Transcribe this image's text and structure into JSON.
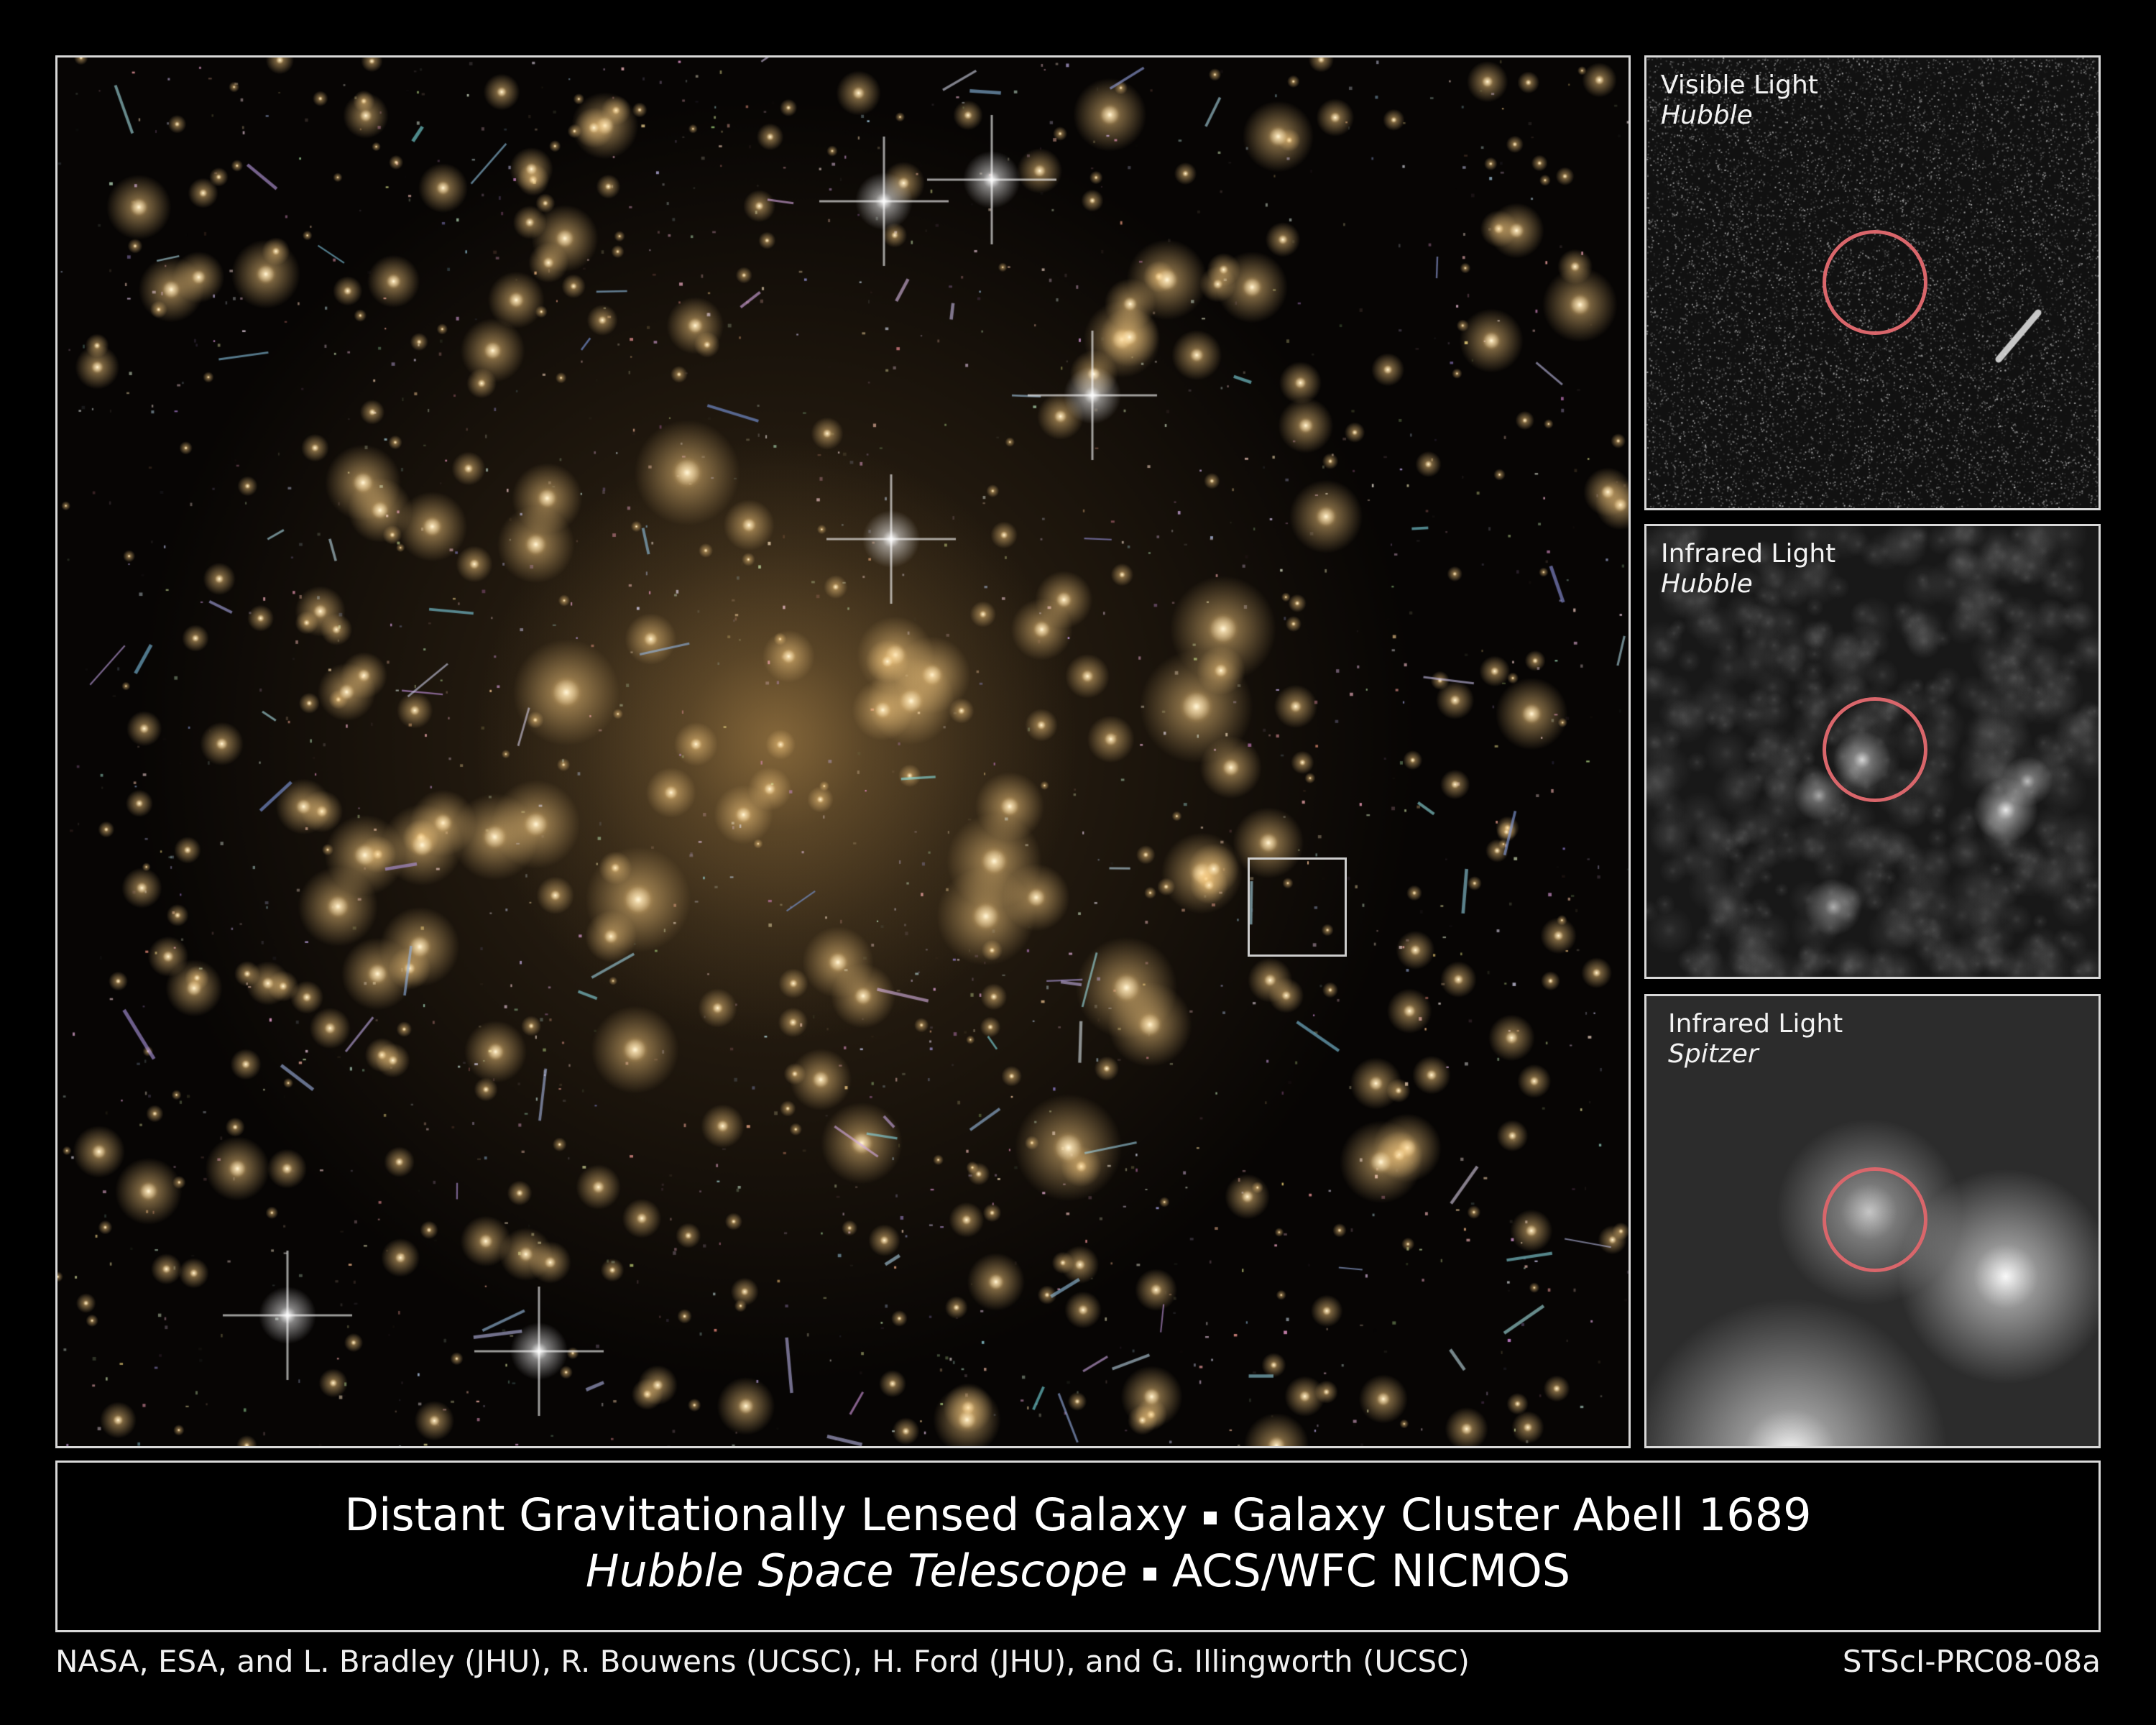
{
  "main_image": {
    "description_label": "Galaxy Cluster Abell 1689 field"
  },
  "panels": [
    {
      "label": "Visible Light",
      "instrument": "Hubble"
    },
    {
      "label": "Infrared Light",
      "instrument": "Hubble"
    },
    {
      "label": "Infrared Light",
      "instrument": "Spitzer"
    }
  ],
  "caption": {
    "line1_a": "Distant Gravitationally Lensed Galaxy",
    "line1_b": "Galaxy Cluster Abell 1689",
    "line2_a": "Hubble Space Telescope",
    "line2_b": "ACS/WFC NICMOS"
  },
  "credits": "NASA, ESA, and L. Bradley (JHU), R. Bouwens (UCSC), H. Ford (JHU), and G. Illingworth (UCSC)",
  "release_id": "STScI-PRC08-08a",
  "colors": {
    "ring": "#d9666b",
    "frame": "#d8d8d8",
    "galaxy": "#f0c070"
  }
}
